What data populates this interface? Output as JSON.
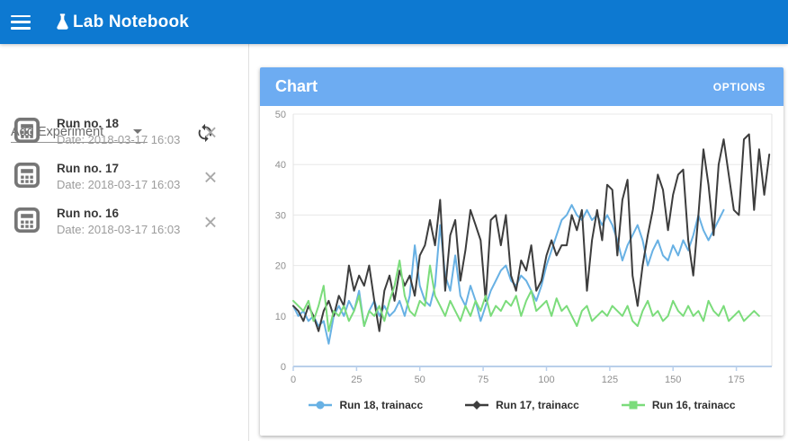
{
  "app": {
    "title": "Lab Notebook"
  },
  "icons": {
    "close_glyph": "×"
  },
  "sidebar": {
    "add_experiment_label": "Add Experiment",
    "experiments": [
      {
        "title": "Run no. 18",
        "date": "Date: 2018-03-17 16:03"
      },
      {
        "title": "Run no. 17",
        "date": "Date: 2018-03-17 16:03"
      },
      {
        "title": "Run no. 16",
        "date": "Date: 2018-03-17 16:03"
      }
    ]
  },
  "chart_panel": {
    "title": "Chart",
    "options_label": "OPTIONS"
  },
  "colors": {
    "topbar": "#0d79d1",
    "card_header": "#6dacf2",
    "grid": "#e8e8e8",
    "plot_border": "#e3e3e3",
    "axis": "#b9cfea",
    "tick_label": "#8f8f8f"
  },
  "chart_data": {
    "type": "line",
    "title": "Chart",
    "xlabel": "",
    "ylabel": "",
    "xlim": [
      0,
      189
    ],
    "ylim": [
      0,
      50
    ],
    "x_ticks": [
      0,
      25,
      50,
      75,
      100,
      125,
      150,
      175
    ],
    "y_ticks": [
      0,
      10,
      20,
      30,
      40,
      50
    ],
    "grid": "horizontal",
    "legend_position": "bottom",
    "series": [
      {
        "name": "Run 18, trainacc",
        "color": "#68b1e4",
        "marker": "circle",
        "points": [
          [
            0,
            12
          ],
          [
            2,
            10
          ],
          [
            4,
            11
          ],
          [
            6,
            9
          ],
          [
            8,
            10
          ],
          [
            10,
            8
          ],
          [
            12,
            9
          ],
          [
            14,
            4.5
          ],
          [
            16,
            10
          ],
          [
            18,
            12
          ],
          [
            20,
            10
          ],
          [
            22,
            13
          ],
          [
            24,
            11
          ],
          [
            26,
            15
          ],
          [
            28,
            8
          ],
          [
            30,
            11
          ],
          [
            32,
            13
          ],
          [
            34,
            10
          ],
          [
            36,
            12
          ],
          [
            38,
            10
          ],
          [
            40,
            11
          ],
          [
            42,
            13
          ],
          [
            44,
            10
          ],
          [
            46,
            14
          ],
          [
            48,
            24
          ],
          [
            50,
            16
          ],
          [
            52,
            13
          ],
          [
            54,
            12
          ],
          [
            56,
            16
          ],
          [
            58,
            28
          ],
          [
            60,
            18
          ],
          [
            62,
            15
          ],
          [
            64,
            22
          ],
          [
            66,
            14
          ],
          [
            68,
            12
          ],
          [
            70,
            16
          ],
          [
            72,
            13
          ],
          [
            74,
            9
          ],
          [
            76,
            12
          ],
          [
            78,
            15
          ],
          [
            80,
            17
          ],
          [
            82,
            19
          ],
          [
            84,
            20
          ],
          [
            86,
            17
          ],
          [
            88,
            16
          ],
          [
            90,
            18
          ],
          [
            92,
            17
          ],
          [
            94,
            15
          ],
          [
            96,
            13
          ],
          [
            98,
            16
          ],
          [
            100,
            20
          ],
          [
            102,
            23
          ],
          [
            104,
            26
          ],
          [
            106,
            29
          ],
          [
            108,
            30
          ],
          [
            110,
            32
          ],
          [
            112,
            30
          ],
          [
            114,
            29
          ],
          [
            116,
            31
          ],
          [
            118,
            29
          ],
          [
            120,
            30
          ],
          [
            122,
            28
          ],
          [
            124,
            30
          ],
          [
            126,
            28
          ],
          [
            128,
            25
          ],
          [
            130,
            21
          ],
          [
            132,
            24
          ],
          [
            134,
            26
          ],
          [
            136,
            28
          ],
          [
            138,
            25
          ],
          [
            140,
            20
          ],
          [
            142,
            23
          ],
          [
            144,
            25
          ],
          [
            146,
            22
          ],
          [
            148,
            21
          ],
          [
            150,
            24
          ],
          [
            152,
            22
          ],
          [
            154,
            25
          ],
          [
            156,
            23
          ],
          [
            158,
            26
          ],
          [
            160,
            30
          ],
          [
            162,
            27
          ],
          [
            164,
            25
          ],
          [
            166,
            27
          ],
          [
            168,
            29
          ],
          [
            170,
            31
          ]
        ]
      },
      {
        "name": "Run 17, trainacc",
        "color": "#3d3d3d",
        "marker": "diamond",
        "points": [
          [
            0,
            12
          ],
          [
            2,
            11
          ],
          [
            4,
            9
          ],
          [
            6,
            12
          ],
          [
            8,
            10
          ],
          [
            10,
            7
          ],
          [
            12,
            11
          ],
          [
            14,
            13
          ],
          [
            16,
            10
          ],
          [
            18,
            14
          ],
          [
            20,
            12
          ],
          [
            22,
            20
          ],
          [
            24,
            15
          ],
          [
            26,
            18
          ],
          [
            28,
            16
          ],
          [
            30,
            20
          ],
          [
            32,
            13
          ],
          [
            34,
            7
          ],
          [
            36,
            15
          ],
          [
            38,
            18
          ],
          [
            40,
            13
          ],
          [
            42,
            19
          ],
          [
            44,
            16
          ],
          [
            46,
            18
          ],
          [
            48,
            14
          ],
          [
            50,
            22
          ],
          [
            52,
            24
          ],
          [
            54,
            29
          ],
          [
            56,
            24
          ],
          [
            58,
            33
          ],
          [
            60,
            15
          ],
          [
            62,
            26
          ],
          [
            64,
            29
          ],
          [
            66,
            17
          ],
          [
            68,
            23
          ],
          [
            70,
            31
          ],
          [
            72,
            28
          ],
          [
            74,
            25
          ],
          [
            76,
            13
          ],
          [
            78,
            29
          ],
          [
            80,
            30
          ],
          [
            82,
            24
          ],
          [
            84,
            30
          ],
          [
            86,
            18
          ],
          [
            88,
            15
          ],
          [
            90,
            21
          ],
          [
            92,
            19
          ],
          [
            94,
            24
          ],
          [
            96,
            15
          ],
          [
            98,
            17
          ],
          [
            100,
            22
          ],
          [
            102,
            25
          ],
          [
            104,
            22
          ],
          [
            106,
            24
          ],
          [
            108,
            24
          ],
          [
            110,
            30
          ],
          [
            112,
            27
          ],
          [
            114,
            31
          ],
          [
            116,
            15
          ],
          [
            118,
            25
          ],
          [
            120,
            31
          ],
          [
            122,
            25
          ],
          [
            124,
            36
          ],
          [
            126,
            35
          ],
          [
            128,
            22
          ],
          [
            130,
            33
          ],
          [
            132,
            37
          ],
          [
            134,
            18
          ],
          [
            136,
            12
          ],
          [
            138,
            20
          ],
          [
            140,
            26
          ],
          [
            142,
            31
          ],
          [
            144,
            38
          ],
          [
            146,
            35
          ],
          [
            148,
            27
          ],
          [
            150,
            34
          ],
          [
            152,
            38
          ],
          [
            154,
            39
          ],
          [
            156,
            25
          ],
          [
            158,
            18
          ],
          [
            160,
            30
          ],
          [
            162,
            43
          ],
          [
            164,
            36
          ],
          [
            166,
            26
          ],
          [
            168,
            40
          ],
          [
            170,
            45
          ],
          [
            172,
            38
          ],
          [
            174,
            31
          ],
          [
            176,
            30
          ],
          [
            178,
            45
          ],
          [
            180,
            46
          ],
          [
            182,
            31
          ],
          [
            184,
            43
          ],
          [
            186,
            34
          ],
          [
            188,
            42
          ]
        ]
      },
      {
        "name": "Run 16, trainacc",
        "color": "#7bdc7b",
        "marker": "square",
        "points": [
          [
            0,
            13
          ],
          [
            2,
            12
          ],
          [
            4,
            11
          ],
          [
            6,
            13
          ],
          [
            8,
            9
          ],
          [
            10,
            12
          ],
          [
            12,
            16
          ],
          [
            14,
            7
          ],
          [
            16,
            11
          ],
          [
            18,
            10
          ],
          [
            20,
            12
          ],
          [
            22,
            9
          ],
          [
            24,
            11
          ],
          [
            26,
            14
          ],
          [
            28,
            8
          ],
          [
            30,
            11
          ],
          [
            32,
            10
          ],
          [
            34,
            12
          ],
          [
            36,
            9
          ],
          [
            38,
            13
          ],
          [
            40,
            16
          ],
          [
            42,
            21
          ],
          [
            44,
            14
          ],
          [
            46,
            11
          ],
          [
            48,
            10
          ],
          [
            50,
            13
          ],
          [
            52,
            12
          ],
          [
            54,
            20
          ],
          [
            56,
            14
          ],
          [
            58,
            12
          ],
          [
            60,
            10
          ],
          [
            62,
            13
          ],
          [
            64,
            11
          ],
          [
            66,
            9
          ],
          [
            68,
            12
          ],
          [
            70,
            10
          ],
          [
            72,
            13
          ],
          [
            74,
            11
          ],
          [
            76,
            14
          ],
          [
            78,
            10
          ],
          [
            80,
            12
          ],
          [
            82,
            11
          ],
          [
            84,
            13
          ],
          [
            86,
            12
          ],
          [
            88,
            14
          ],
          [
            90,
            10
          ],
          [
            92,
            13
          ],
          [
            94,
            15
          ],
          [
            96,
            11
          ],
          [
            98,
            12
          ],
          [
            100,
            13
          ],
          [
            102,
            10
          ],
          [
            104,
            13.5
          ],
          [
            106,
            11
          ],
          [
            108,
            12
          ],
          [
            110,
            10
          ],
          [
            112,
            8
          ],
          [
            114,
            11
          ],
          [
            116,
            12
          ],
          [
            118,
            9
          ],
          [
            120,
            10
          ],
          [
            122,
            11
          ],
          [
            124,
            10
          ],
          [
            126,
            12
          ],
          [
            128,
            11
          ],
          [
            130,
            10
          ],
          [
            132,
            12
          ],
          [
            134,
            9
          ],
          [
            136,
            8
          ],
          [
            138,
            11
          ],
          [
            140,
            13
          ],
          [
            142,
            10
          ],
          [
            144,
            11
          ],
          [
            146,
            9
          ],
          [
            148,
            10
          ],
          [
            150,
            13
          ],
          [
            152,
            11
          ],
          [
            154,
            10
          ],
          [
            156,
            12
          ],
          [
            158,
            10
          ],
          [
            160,
            11
          ],
          [
            162,
            9
          ],
          [
            164,
            13
          ],
          [
            166,
            11
          ],
          [
            168,
            10
          ],
          [
            170,
            12
          ],
          [
            172,
            9
          ],
          [
            174,
            10
          ],
          [
            176,
            11
          ],
          [
            178,
            9
          ],
          [
            180,
            10
          ],
          [
            182,
            11
          ],
          [
            184,
            10
          ]
        ]
      }
    ]
  }
}
